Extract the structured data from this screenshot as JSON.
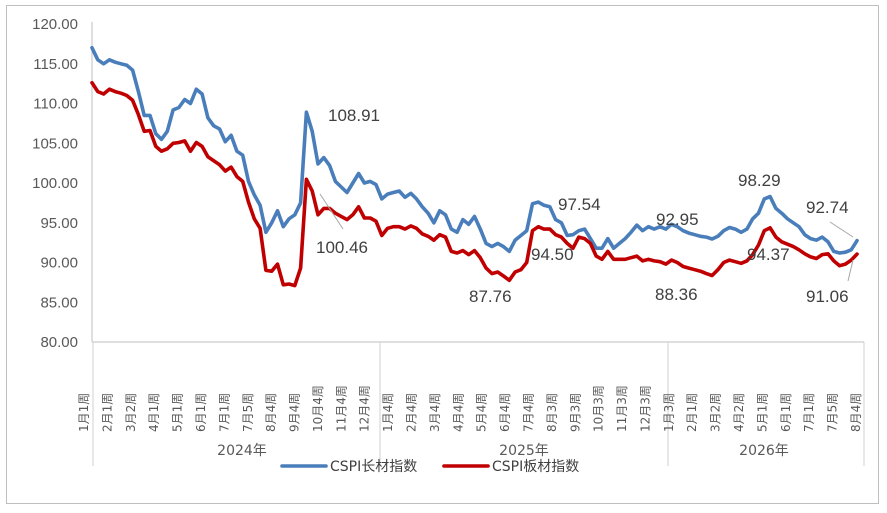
{
  "chart_data": {
    "type": "line",
    "title": "",
    "xlabel": "",
    "ylabel": "",
    "ylim": [
      80,
      120
    ],
    "yticks": [
      "80.00",
      "85.00",
      "90.00",
      "95.00",
      "100.00",
      "105.00",
      "110.00",
      "115.00",
      "120.00"
    ],
    "x_tick_labels": [
      "1月1周",
      "2月1周",
      "3月2周",
      "4月1周",
      "5月1周",
      "6月1周",
      "7月1周",
      "7月5周",
      "8月4周",
      "9月4周",
      "10月4周",
      "11月4周",
      "12月4周",
      "1月4周",
      "2月4周",
      "3月4周",
      "4月4周",
      "5月4周",
      "6月4周",
      "7月4周",
      "8月3周",
      "9月3周",
      "10月3周",
      "11月3周",
      "12月3周",
      "1月3周",
      "2月1周",
      "3月2周",
      "4月2周",
      "5月1周",
      "6月1周",
      "7月1周",
      "7月5周",
      "8月4周"
    ],
    "years": [
      "2024年",
      "2025年",
      "2026年"
    ],
    "legend": {
      "placement": "bottom"
    },
    "grid": false,
    "series": [
      {
        "name": "CSPI长材指数",
        "color": "#4a7ebb",
        "values": [
          117,
          115.5,
          115,
          115.5,
          115.2,
          115,
          114.8,
          114.2,
          111.5,
          108.5,
          108.5,
          106.2,
          105.5,
          106.5,
          109.2,
          109.5,
          110.5,
          110,
          111.8,
          111.2,
          108.2,
          107.2,
          106.8,
          105.2,
          106,
          104,
          103.5,
          100.2,
          98.5,
          97.2,
          93.8,
          95,
          96.5,
          94.5,
          95.5,
          96,
          97.5,
          108.91,
          106.5,
          102.4,
          103.2,
          102.2,
          100.2,
          99.5,
          98.8,
          100,
          101.2,
          100,
          100.2,
          99.8,
          98,
          98.6,
          98.8,
          99,
          98.2,
          98.7,
          98,
          97,
          96.2,
          95,
          96.5,
          96,
          94.2,
          93.8,
          95.4,
          94.8,
          95.8,
          94.2,
          92.4,
          92,
          92.4,
          92,
          91.4,
          92.8,
          93.4,
          94,
          97.4,
          97.6,
          97.2,
          97,
          95.4,
          95,
          93.4,
          93.5,
          94,
          94.2,
          93,
          91.8,
          91.8,
          93,
          91.8,
          92.4,
          93,
          93.8,
          94.7,
          94,
          94.5,
          94.2,
          94.5,
          94.2,
          94.8,
          94.5,
          94.0,
          93.7,
          93.5,
          93.3,
          93.2,
          92.95,
          93.3,
          94,
          94.4,
          94.2,
          93.8,
          94.2,
          95.5,
          96.2,
          98.0,
          98.29,
          96.8,
          96.2,
          95.5,
          95,
          94.5,
          93.5,
          93,
          92.8,
          93.2,
          92.6,
          91.4,
          91.2,
          91.3,
          91.6,
          92.74
        ]
      },
      {
        "name": "CSPI板材指数",
        "color": "#c00000",
        "values": [
          112.6,
          111.5,
          111.2,
          111.8,
          111.5,
          111.3,
          111,
          110.4,
          108.6,
          106.5,
          106.6,
          104.6,
          104,
          104.3,
          105,
          105.1,
          105.3,
          104,
          105.1,
          104.6,
          103.3,
          102.8,
          102.3,
          101.5,
          102,
          100.8,
          100.2,
          97.6,
          95.5,
          94.3,
          89,
          88.9,
          89.8,
          87.2,
          87.3,
          87.1,
          89.3,
          100.46,
          99,
          96,
          96.8,
          96.8,
          96.2,
          95.8,
          95.4,
          96,
          97,
          95.6,
          95.6,
          95.2,
          93.4,
          94.3,
          94.5,
          94.5,
          94.2,
          94.6,
          94.3,
          93.6,
          93.3,
          92.8,
          93.5,
          93.2,
          91.4,
          91.2,
          91.5,
          91,
          91.5,
          90.6,
          89.3,
          88.6,
          88.8,
          88.3,
          87.76,
          88.8,
          89.1,
          90,
          94,
          94.5,
          94.2,
          94.2,
          93.5,
          93.2,
          92.4,
          91.8,
          93.2,
          93,
          92.4,
          90.8,
          90.4,
          91.4,
          90.4,
          90.4,
          90.4,
          90.6,
          90.8,
          90.2,
          90.4,
          90.2,
          90.1,
          89.8,
          90.3,
          90,
          89.5,
          89.3,
          89.1,
          88.9,
          88.6,
          88.36,
          89.1,
          90,
          90.3,
          90.1,
          89.9,
          90.2,
          91,
          92.2,
          94,
          94.37,
          93.2,
          92.6,
          92.3,
          92,
          91.6,
          91.1,
          90.7,
          90.5,
          91,
          91.1,
          90.2,
          89.6,
          89.8,
          90.3,
          91.06
        ]
      }
    ],
    "annotations": [
      "108.91",
      "100.46",
      "97.54",
      "94.50",
      "87.76",
      "92.95",
      "88.36",
      "98.29",
      "94.37",
      "92.74",
      "91.06"
    ]
  }
}
